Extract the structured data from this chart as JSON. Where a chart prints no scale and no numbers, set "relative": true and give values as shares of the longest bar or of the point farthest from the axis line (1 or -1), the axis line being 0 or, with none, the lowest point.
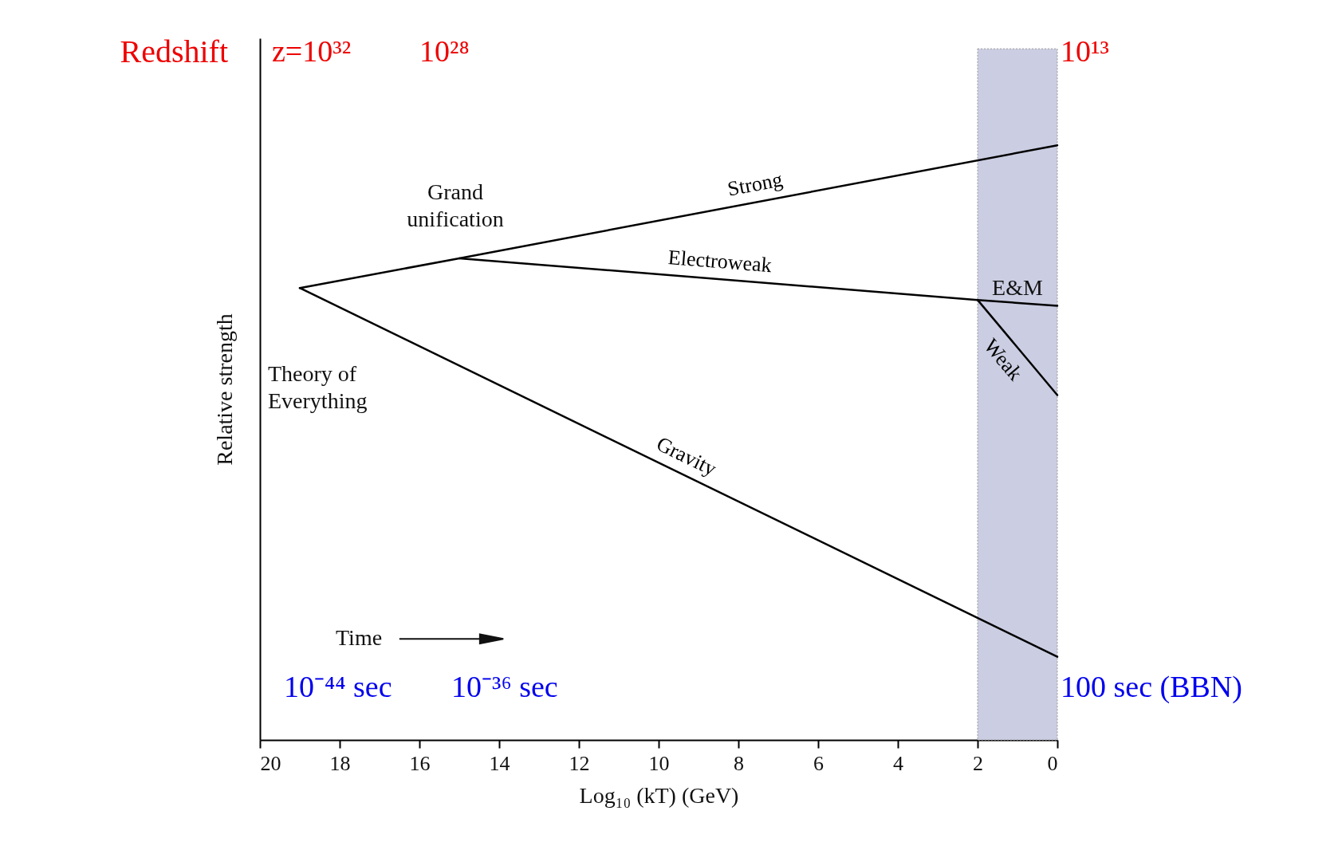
{
  "chart_data": {
    "type": "line",
    "relative": true,
    "xlabel": "Log₁₀ (kT) (GeV)",
    "ylabel": "Relative strength",
    "xlim": [
      20,
      0
    ],
    "xticks": [
      20,
      18,
      16,
      14,
      12,
      10,
      8,
      6,
      4,
      2,
      0
    ],
    "grid": false,
    "legend": false,
    "series": [
      {
        "name": "Strong",
        "color": "#000000",
        "x": [
          19,
          15,
          0
        ],
        "values": [
          0.76,
          0.81,
          1
        ]
      },
      {
        "name": "Electroweak",
        "color": "#000000",
        "x": [
          15,
          2,
          0
        ],
        "values": [
          0.81,
          0.74,
          0.73
        ]
      },
      {
        "name": "Weak",
        "color": "#000000",
        "x": [
          2,
          0
        ],
        "values": [
          0.74,
          0.58
        ]
      },
      {
        "name": "Gravity",
        "color": "#000000",
        "x": [
          19,
          0
        ],
        "values": [
          0.76,
          0.14
        ]
      }
    ],
    "bands": [
      {
        "axis": "x",
        "from": 2,
        "to": 0,
        "color": "#cbcde2"
      }
    ],
    "annotations": [
      "Redshift",
      "z=10³²",
      "10²⁸",
      "10¹³",
      "10⁻⁴⁴ sec",
      "10⁻³⁶ sec",
      "100 sec (BBN)",
      "Time",
      "Theory of Everything",
      "Grand unification",
      {
        "text": "E&M",
        "x": 1,
        "y": 0.735
      }
    ]
  }
}
